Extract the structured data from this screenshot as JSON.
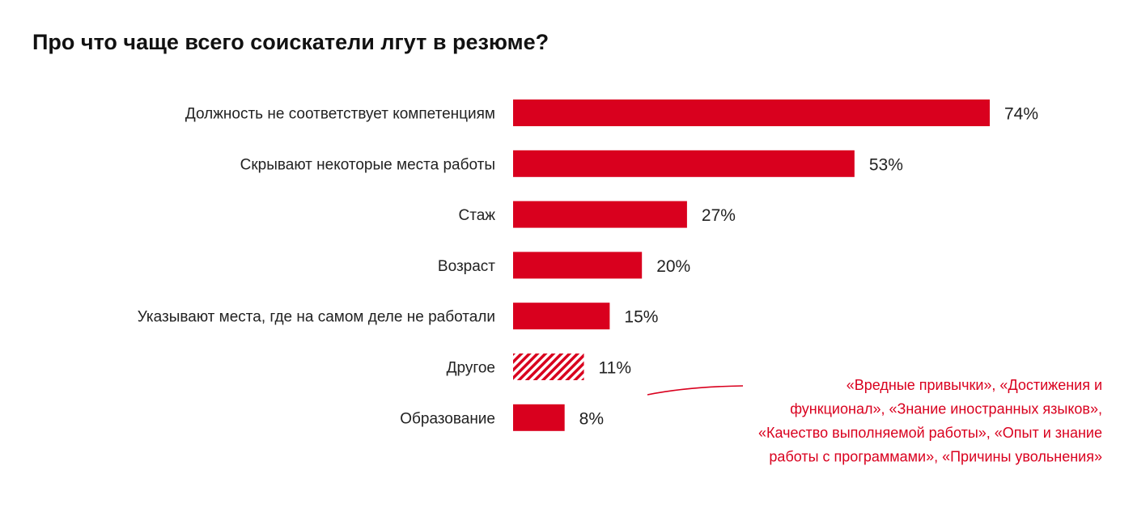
{
  "colors": {
    "bar": "#d9001e",
    "note": "#d9001e",
    "text": "#222222"
  },
  "chart_data": {
    "type": "bar",
    "orientation": "horizontal",
    "title": "Про что чаще всего соискатели лгут в резюме?",
    "xlabel": "",
    "ylabel": "",
    "xlim": [
      0,
      74
    ],
    "grid": false,
    "categories": [
      "Должность не соответствует компетенциям",
      "Скрывают некоторые места работы",
      "Стаж",
      "Возраст",
      "Указывают места, где на самом деле не работали",
      "Другое",
      "Образование"
    ],
    "values": [
      74,
      53,
      27,
      20,
      15,
      11,
      8
    ],
    "value_labels": [
      "74%",
      "53%",
      "27%",
      "20%",
      "15%",
      "11%",
      "8%"
    ],
    "hatched_categories": [
      "Другое"
    ],
    "annotation": {
      "target": "Другое",
      "lines": [
        "«Вредные привычки», «Достижения и",
        "функционал», «Знание иностранных языков»,",
        "«Качество выполняемой работы», «Опыт и знание",
        "работы с программами», «Причины увольнения»"
      ]
    }
  }
}
